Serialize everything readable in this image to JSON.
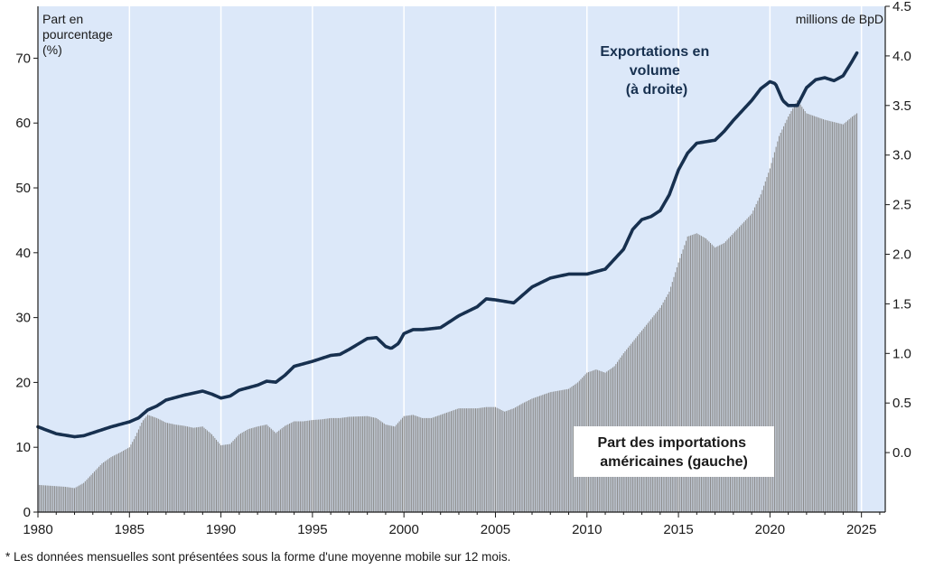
{
  "chart_data": {
    "type": "bar+line",
    "left_axis_label": [
      "Part en",
      "pourcentage",
      "(%)"
    ],
    "right_axis_label": "millions de BpD",
    "x_ticks": [
      "1980",
      "1985",
      "1990",
      "1995",
      "2000",
      "2005",
      "2010",
      "2015",
      "2020",
      "2025"
    ],
    "xlim": [
      1980,
      2026.3
    ],
    "y_left": {
      "ylim": [
        0,
        78
      ],
      "ticks": [
        "0",
        "10",
        "20",
        "30",
        "40",
        "50",
        "60",
        "70"
      ]
    },
    "y_right": {
      "ylim": [
        -0.6,
        4.5
      ],
      "ticks": [
        "0.0",
        "0.5",
        "1.0",
        "1.5",
        "2.0",
        "2.5",
        "3.0",
        "3.5",
        "4.0",
        "4.5"
      ]
    },
    "series": [
      {
        "name": "Part des importations américaines (gauche)",
        "axis": "left",
        "style": "bars",
        "color": "#8c8c8c",
        "points": [
          [
            1980,
            4.2
          ],
          [
            1981.5,
            3.9
          ],
          [
            1982,
            3.7
          ],
          [
            1982.5,
            4.5
          ],
          [
            1983,
            6
          ],
          [
            1983.5,
            7.5
          ],
          [
            1984,
            8.5
          ],
          [
            1984.5,
            9.2
          ],
          [
            1985,
            10
          ],
          [
            1985.3,
            11.5
          ],
          [
            1985.7,
            14
          ],
          [
            1986,
            15
          ],
          [
            1986.5,
            14.5
          ],
          [
            1987,
            13.8
          ],
          [
            1987.5,
            13.5
          ],
          [
            1988,
            13.3
          ],
          [
            1988.5,
            13
          ],
          [
            1989,
            13.2
          ],
          [
            1989.5,
            12
          ],
          [
            1990,
            10.3
          ],
          [
            1990.5,
            10.5
          ],
          [
            1991,
            12
          ],
          [
            1991.5,
            12.8
          ],
          [
            1992,
            13.2
          ],
          [
            1992.5,
            13.5
          ],
          [
            1993,
            12.2
          ],
          [
            1993.5,
            13.3
          ],
          [
            1994,
            14
          ],
          [
            1994.5,
            14
          ],
          [
            1995,
            14.2
          ],
          [
            1995.5,
            14.3
          ],
          [
            1996,
            14.5
          ],
          [
            1996.5,
            14.5
          ],
          [
            1997,
            14.7
          ],
          [
            1998,
            14.8
          ],
          [
            1998.5,
            14.5
          ],
          [
            1999,
            13.5
          ],
          [
            1999.5,
            13.2
          ],
          [
            2000,
            14.8
          ],
          [
            2000.5,
            15
          ],
          [
            2001,
            14.5
          ],
          [
            2001.5,
            14.5
          ],
          [
            2002,
            15
          ],
          [
            2002.5,
            15.5
          ],
          [
            2003,
            16
          ],
          [
            2004,
            16
          ],
          [
            2004.5,
            16.2
          ],
          [
            2005,
            16.2
          ],
          [
            2005.5,
            15.5
          ],
          [
            2006,
            16
          ],
          [
            2006.5,
            16.8
          ],
          [
            2007,
            17.5
          ],
          [
            2008,
            18.5
          ],
          [
            2009,
            19
          ],
          [
            2009.5,
            20
          ],
          [
            2010,
            21.5
          ],
          [
            2010.5,
            22
          ],
          [
            2011,
            21.5
          ],
          [
            2011.5,
            22.5
          ],
          [
            2012,
            24.5
          ],
          [
            2013,
            28
          ],
          [
            2014,
            31.5
          ],
          [
            2014.5,
            34
          ],
          [
            2015,
            38.5
          ],
          [
            2015.5,
            42.5
          ],
          [
            2016,
            43
          ],
          [
            2016.5,
            42.2
          ],
          [
            2017,
            40.8
          ],
          [
            2017.5,
            41.5
          ],
          [
            2018,
            43
          ],
          [
            2019,
            46
          ],
          [
            2019.5,
            49
          ],
          [
            2020,
            53
          ],
          [
            2020.5,
            58
          ],
          [
            2021,
            61
          ],
          [
            2021.5,
            63.5
          ],
          [
            2022,
            61.5
          ],
          [
            2022.5,
            61
          ],
          [
            2023,
            60.5
          ],
          [
            2024,
            59.8
          ],
          [
            2024.5,
            61
          ],
          [
            2024.75,
            61.5
          ]
        ]
      },
      {
        "name": "Exportations en volume (à droite)",
        "axis": "right",
        "style": "line",
        "color": "#17304f",
        "points": [
          [
            1980,
            0.26
          ],
          [
            1981,
            0.19
          ],
          [
            1982,
            0.16
          ],
          [
            1982.5,
            0.17
          ],
          [
            1983,
            0.2
          ],
          [
            1984,
            0.26
          ],
          [
            1985,
            0.31
          ],
          [
            1985.5,
            0.35
          ],
          [
            1986,
            0.43
          ],
          [
            1986.5,
            0.47
          ],
          [
            1987,
            0.53
          ],
          [
            1988,
            0.58
          ],
          [
            1989,
            0.62
          ],
          [
            1989.5,
            0.59
          ],
          [
            1990,
            0.55
          ],
          [
            1990.5,
            0.57
          ],
          [
            1991,
            0.63
          ],
          [
            1992,
            0.68
          ],
          [
            1992.5,
            0.72
          ],
          [
            1993,
            0.71
          ],
          [
            1993.5,
            0.78
          ],
          [
            1994,
            0.87
          ],
          [
            1995,
            0.92
          ],
          [
            1996,
            0.98
          ],
          [
            1996.5,
            0.99
          ],
          [
            1997,
            1.04
          ],
          [
            1998,
            1.15
          ],
          [
            1998.5,
            1.16
          ],
          [
            1999,
            1.07
          ],
          [
            1999.3,
            1.05
          ],
          [
            1999.7,
            1.1
          ],
          [
            2000,
            1.2
          ],
          [
            2000.5,
            1.24
          ],
          [
            2001,
            1.24
          ],
          [
            2002,
            1.26
          ],
          [
            2002.5,
            1.32
          ],
          [
            2003,
            1.38
          ],
          [
            2004,
            1.47
          ],
          [
            2004.5,
            1.55
          ],
          [
            2005,
            1.54
          ],
          [
            2006,
            1.51
          ],
          [
            2006.5,
            1.59
          ],
          [
            2007,
            1.67
          ],
          [
            2008,
            1.76
          ],
          [
            2009,
            1.8
          ],
          [
            2010,
            1.8
          ],
          [
            2011,
            1.85
          ],
          [
            2012,
            2.05
          ],
          [
            2012.5,
            2.25
          ],
          [
            2013,
            2.35
          ],
          [
            2013.5,
            2.38
          ],
          [
            2014,
            2.44
          ],
          [
            2014.5,
            2.6
          ],
          [
            2015,
            2.85
          ],
          [
            2015.5,
            3.02
          ],
          [
            2016,
            3.12
          ],
          [
            2017,
            3.15
          ],
          [
            2017.5,
            3.24
          ],
          [
            2018,
            3.35
          ],
          [
            2019,
            3.55
          ],
          [
            2019.5,
            3.67
          ],
          [
            2020,
            3.74
          ],
          [
            2020.3,
            3.72
          ],
          [
            2020.7,
            3.55
          ],
          [
            2021,
            3.5
          ],
          [
            2021.5,
            3.5
          ],
          [
            2022,
            3.68
          ],
          [
            2022.5,
            3.76
          ],
          [
            2023,
            3.78
          ],
          [
            2023.5,
            3.75
          ],
          [
            2024,
            3.8
          ],
          [
            2024.5,
            3.95
          ],
          [
            2024.75,
            4.03
          ]
        ]
      }
    ],
    "annotations": {
      "exports": [
        "Exportations en",
        "volume",
        "(à droite)"
      ],
      "imports": [
        "Part des importations",
        "américaines (gauche)"
      ]
    }
  },
  "footnote": "* Les données mensuelles sont présentées sous la forme d'une moyenne mobile sur 12 mois.",
  "colors": {
    "background": "#dce8f9",
    "bars": "#8c8c8c",
    "line": "#17304f",
    "grid": "#ffffff"
  }
}
